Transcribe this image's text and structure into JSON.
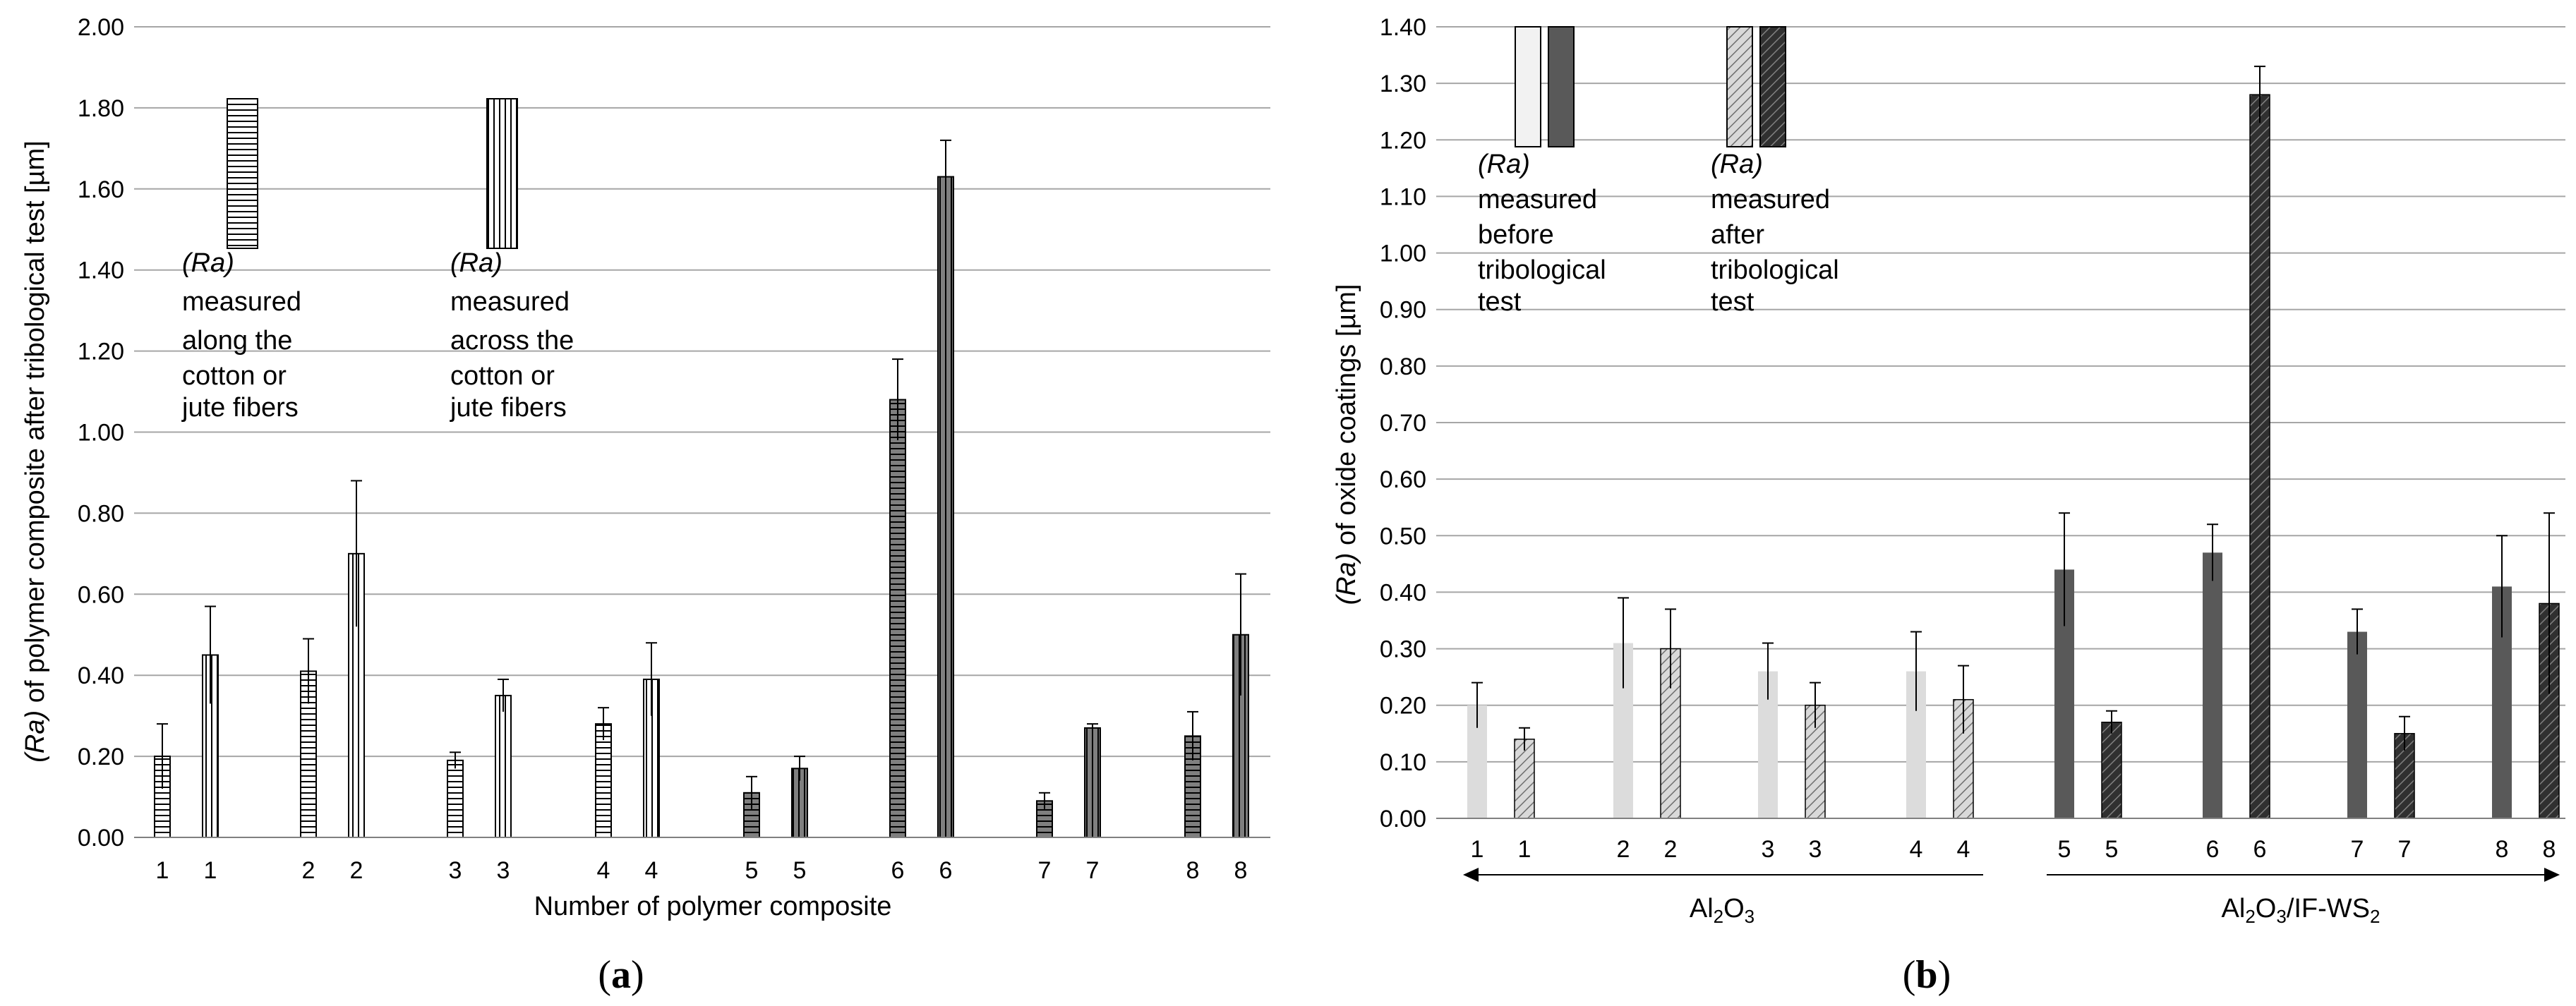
{
  "chart_data": [
    {
      "id": "a",
      "type": "bar",
      "caption": "(a)",
      "xlabel": "Number of polymer composite",
      "ylabel_prefix": "(Ra)",
      "ylabel_rest": " of polymer composite after tribological test [µm]",
      "ylim": [
        0,
        2.0
      ],
      "yticks": [
        "0.00",
        "0.20",
        "0.40",
        "0.60",
        "0.80",
        "1.00",
        "1.20",
        "1.40",
        "1.60",
        "1.80",
        "2.00"
      ],
      "grid": true,
      "series": [
        {
          "pattern": "horizontal"
        },
        {
          "pattern": "vertical"
        }
      ],
      "categories": [
        "1",
        "2",
        "3",
        "4",
        "5",
        "6",
        "7",
        "8"
      ],
      "bars": [
        {
          "label": "1",
          "series": 0,
          "value": 0.2,
          "err": 0.08,
          "shade": "light"
        },
        {
          "label": "1",
          "series": 1,
          "value": 0.45,
          "err": 0.12,
          "shade": "light"
        },
        {
          "label": "2",
          "series": 0,
          "value": 0.41,
          "err": 0.08,
          "shade": "light"
        },
        {
          "label": "2",
          "series": 1,
          "value": 0.7,
          "err": 0.18,
          "shade": "light"
        },
        {
          "label": "3",
          "series": 0,
          "value": 0.19,
          "err": 0.02,
          "shade": "light"
        },
        {
          "label": "3",
          "series": 1,
          "value": 0.35,
          "err": 0.04,
          "shade": "light"
        },
        {
          "label": "4",
          "series": 0,
          "value": 0.28,
          "err": 0.04,
          "shade": "light"
        },
        {
          "label": "4",
          "series": 1,
          "value": 0.39,
          "err": 0.09,
          "shade": "light"
        },
        {
          "label": "5",
          "series": 0,
          "value": 0.11,
          "err": 0.04,
          "shade": "dark"
        },
        {
          "label": "5",
          "series": 1,
          "value": 0.17,
          "err": 0.03,
          "shade": "dark"
        },
        {
          "label": "6",
          "series": 0,
          "value": 1.08,
          "err": 0.1,
          "shade": "dark"
        },
        {
          "label": "6",
          "series": 1,
          "value": 1.63,
          "err": 0.09,
          "shade": "dark"
        },
        {
          "label": "7",
          "series": 0,
          "value": 0.09,
          "err": 0.02,
          "shade": "dark"
        },
        {
          "label": "7",
          "series": 1,
          "value": 0.27,
          "err": 0.01,
          "shade": "dark"
        },
        {
          "label": "8",
          "series": 0,
          "value": 0.25,
          "err": 0.06,
          "shade": "dark"
        },
        {
          "label": "8",
          "series": 1,
          "value": 0.5,
          "err": 0.15,
          "shade": "dark"
        }
      ],
      "legend": [
        {
          "pattern": "horizontal",
          "lines": [
            "(Ra)",
            "measured",
            "along the",
            "cotton or",
            "jute fibers"
          ]
        },
        {
          "pattern": "vertical",
          "lines": [
            "(Ra)",
            "measured",
            "across the",
            "cotton or",
            "jute fibers"
          ]
        }
      ]
    },
    {
      "id": "b",
      "type": "bar",
      "caption": "(b)",
      "ylabel_prefix": "(Ra)",
      "ylabel_rest": " of oxide coatings [µm]",
      "ylim": [
        0,
        1.4
      ],
      "yticks": [
        "0.00",
        "0.10",
        "0.20",
        "0.30",
        "0.40",
        "0.50",
        "0.60",
        "0.70",
        "0.80",
        "0.90",
        "1.00",
        "1.10",
        "1.20",
        "1.30",
        "1.40"
      ],
      "grid": true,
      "categories": [
        "1",
        "2",
        "3",
        "4",
        "5",
        "6",
        "7",
        "8"
      ],
      "bars": [
        {
          "label": "1",
          "series": 0,
          "value": 0.2,
          "err": 0.04,
          "fill": "#dcdcdc",
          "hatch": false
        },
        {
          "label": "1",
          "series": 1,
          "value": 0.14,
          "err": 0.02,
          "fill": "#c8c8c8",
          "hatch": true
        },
        {
          "label": "2",
          "series": 0,
          "value": 0.31,
          "err": 0.08,
          "fill": "#dcdcdc",
          "hatch": false
        },
        {
          "label": "2",
          "series": 1,
          "value": 0.3,
          "err": 0.07,
          "fill": "#c8c8c8",
          "hatch": true
        },
        {
          "label": "3",
          "series": 0,
          "value": 0.26,
          "err": 0.05,
          "fill": "#dcdcdc",
          "hatch": false
        },
        {
          "label": "3",
          "series": 1,
          "value": 0.2,
          "err": 0.04,
          "fill": "#c8c8c8",
          "hatch": true
        },
        {
          "label": "4",
          "series": 0,
          "value": 0.26,
          "err": 0.07,
          "fill": "#dcdcdc",
          "hatch": false
        },
        {
          "label": "4",
          "series": 1,
          "value": 0.21,
          "err": 0.06,
          "fill": "#c8c8c8",
          "hatch": true
        },
        {
          "label": "5",
          "series": 0,
          "value": 0.44,
          "err": 0.1,
          "fill": "#595959",
          "hatch": false
        },
        {
          "label": "5",
          "series": 1,
          "value": 0.17,
          "err": 0.02,
          "fill": "#404040",
          "hatch": true
        },
        {
          "label": "6",
          "series": 0,
          "value": 0.47,
          "err": 0.05,
          "fill": "#595959",
          "hatch": false
        },
        {
          "label": "6",
          "series": 1,
          "value": 1.28,
          "err": 0.05,
          "fill": "#404040",
          "hatch": true
        },
        {
          "label": "7",
          "series": 0,
          "value": 0.33,
          "err": 0.04,
          "fill": "#595959",
          "hatch": false
        },
        {
          "label": "7",
          "series": 1,
          "value": 0.15,
          "err": 0.03,
          "fill": "#404040",
          "hatch": true
        },
        {
          "label": "8",
          "series": 0,
          "value": 0.41,
          "err": 0.09,
          "fill": "#595959",
          "hatch": false
        },
        {
          "label": "8",
          "series": 1,
          "value": 0.38,
          "err": 0.16,
          "fill": "#404040",
          "hatch": true
        }
      ],
      "groups": [
        {
          "base": "Al",
          "sub1": "2",
          "mid": "O",
          "sub2": "3",
          "tail": "",
          "sub3": ""
        },
        {
          "base": "Al",
          "sub1": "2",
          "mid": "O",
          "sub2": "3",
          "tail": "/IF-WS",
          "sub3": "2"
        }
      ],
      "legend": [
        {
          "lines": [
            "(Ra)",
            "measured",
            "before",
            "tribological",
            "test"
          ]
        },
        {
          "lines": [
            "(Ra)",
            "measured",
            "after",
            "tribological",
            "test"
          ]
        }
      ]
    }
  ],
  "colors": {
    "grid": "#a6a6a6",
    "light_bar": "#ffffff",
    "dark_bar": "#7f7f7f",
    "stroke": "#000000"
  }
}
